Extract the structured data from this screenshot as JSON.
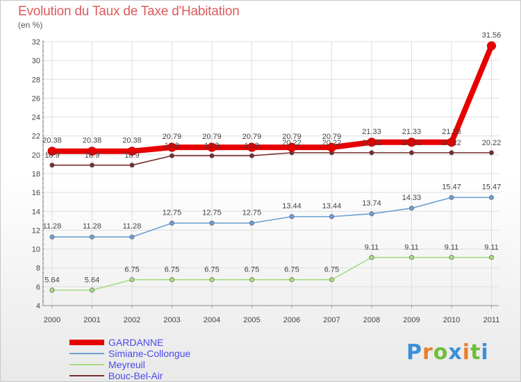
{
  "header": {
    "title": "Evolution du Taux de Taxe d'Habitation",
    "unit": "(en %)"
  },
  "logo": {
    "text": "Proxiti",
    "colors": [
      "#3b8fd9",
      "#e8802a",
      "#6cbf3a",
      "#3b8fd9",
      "#e8802a",
      "#6cbf3a",
      "#3b8fd9"
    ]
  },
  "chart_data": {
    "type": "line",
    "title": "Evolution du Taux de Taxe d'Habitation",
    "ylabel": "(en %)",
    "xlabel": "",
    "x": [
      "2000",
      "2001",
      "2002",
      "2003",
      "2004",
      "2005",
      "2006",
      "2007",
      "2008",
      "2009",
      "2010",
      "2011"
    ],
    "ylim": [
      4,
      32
    ],
    "yticks": [
      4,
      6,
      8,
      10,
      12,
      14,
      16,
      18,
      20,
      22,
      24,
      26,
      28,
      30,
      32
    ],
    "grid": true,
    "legend_position": "bottom-left",
    "series": [
      {
        "name": "GARDANNE",
        "color": "#e60000",
        "emphasis": true,
        "values": [
          20.38,
          20.38,
          20.38,
          20.79,
          20.79,
          20.79,
          20.79,
          20.79,
          21.33,
          21.33,
          21.33,
          31.56
        ],
        "labels": [
          "20.38",
          "20.38",
          "20.38",
          "20.79",
          "20.79",
          "20.79",
          "20.79",
          "20.79",
          "21.33",
          "21.33",
          "21.33",
          "31.56"
        ]
      },
      {
        "name": "Simiane-Collongue",
        "color": "#6e9fd0",
        "emphasis": false,
        "values": [
          11.28,
          11.28,
          11.28,
          12.75,
          12.75,
          12.75,
          13.44,
          13.44,
          13.74,
          14.33,
          15.47,
          15.47
        ],
        "labels": [
          "11.28",
          "11.28",
          "11.28",
          "12.75",
          "12.75",
          "12.75",
          "13.44",
          "13.44",
          "13.74",
          "14.33",
          "15.47",
          "15.47"
        ]
      },
      {
        "name": "Meyreuil",
        "color": "#a8dc80",
        "emphasis": false,
        "values": [
          5.64,
          5.64,
          6.75,
          6.75,
          6.75,
          6.75,
          6.75,
          6.75,
          9.11,
          9.11,
          9.11,
          9.11
        ],
        "labels": [
          "5.64",
          "5.64",
          "6.75",
          "6.75",
          "6.75",
          "6.75",
          "6.75",
          "6.75",
          "9.11",
          "9.11",
          "9.11",
          "9.11"
        ]
      },
      {
        "name": "Bouc-Bel-Air",
        "color": "#7a2e2e",
        "emphasis": false,
        "values": [
          18.9,
          18.9,
          18.9,
          19.9,
          19.9,
          19.9,
          20.22,
          20.22,
          20.22,
          20.22,
          20.22,
          20.22
        ],
        "labels": [
          "18.9",
          "18.9",
          "18.9",
          "19.9",
          "19.9",
          "19.9",
          "20.22",
          "20.22",
          "20.22",
          "20.22",
          "20.22",
          "20.22"
        ]
      }
    ]
  }
}
